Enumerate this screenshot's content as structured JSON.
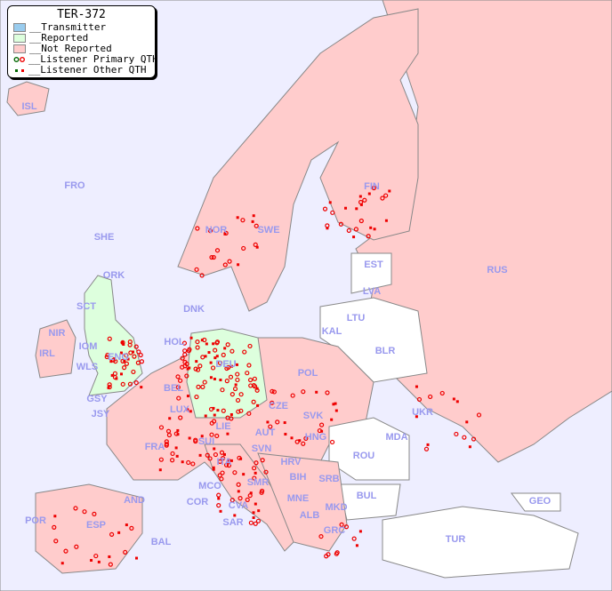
{
  "legend": {
    "title": "TER-372",
    "items": [
      {
        "label": "__Transmitter",
        "color": "#99ccee"
      },
      {
        "label": "__Reported",
        "color": "#ddffdd"
      },
      {
        "label": "__Not Reported",
        "color": "#ffcccc"
      },
      {
        "label": "__Listener Primary QTH",
        "marker": "open-circle",
        "colors": [
          "#006600",
          "#ee0000"
        ]
      },
      {
        "label": "__Listener Other QTH",
        "marker": "small-square",
        "colors": [
          "#006600",
          "#ee0000"
        ]
      }
    ]
  },
  "colors": {
    "sea": "#eeeeff",
    "reported": "#ddffdd",
    "not_reported": "#ffcccc",
    "no_data": "#ffffff",
    "border": "#888888",
    "marker": "#ee0000",
    "label": "#9999ee"
  },
  "countries": [
    "ISL",
    "FRO",
    "SHE",
    "ORK",
    "NOR",
    "SWE",
    "FIN",
    "EST",
    "LVA",
    "LTU",
    "KAL",
    "RUS",
    "BLR",
    "UKR",
    "MDA",
    "DNK",
    "HOL",
    "BEL",
    "LUX",
    "DEU",
    "POL",
    "CZE",
    "SVK",
    "HNG",
    "AUT",
    "SUI",
    "LIE",
    "FRA",
    "GSY",
    "JSY",
    "IRL",
    "NIR",
    "IOM",
    "WLS",
    "ENG",
    "SCT",
    "ITA",
    "SVN",
    "HRV",
    "BIH",
    "SRB",
    "MNE",
    "ALB",
    "MKD",
    "GRC",
    "BUL",
    "ROU",
    "TUR",
    "GEO",
    "AND",
    "POR",
    "ESP",
    "BAL",
    "MCO",
    "COR",
    "CVA",
    "SMR",
    "SAR"
  ]
}
